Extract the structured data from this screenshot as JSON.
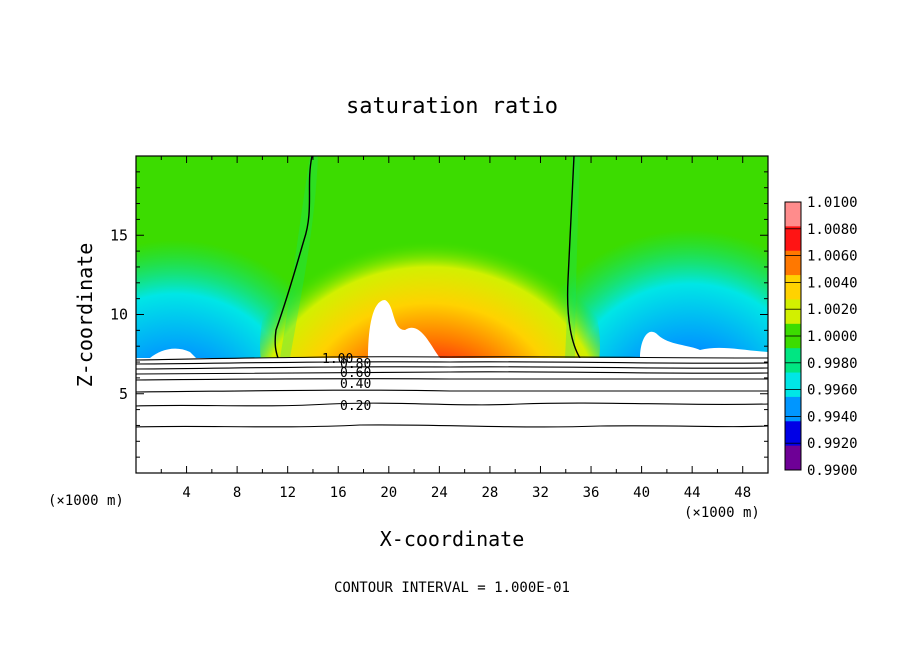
{
  "chart_data": {
    "type": "heatmap",
    "title": "saturation ratio",
    "xlabel": "X-coordinate",
    "ylabel": "Z-coordinate",
    "x_unit_label": "(×1000 m)",
    "z_unit_label": "(×1000 m)",
    "xlim": [
      0,
      50
    ],
    "ylim": [
      0,
      20
    ],
    "x_ticks": [
      4,
      8,
      12,
      16,
      20,
      24,
      28,
      32,
      36,
      40,
      44,
      48
    ],
    "y_ticks": [
      5,
      10,
      15
    ],
    "colorbar": {
      "levels": [
        "1.0100",
        "1.0080",
        "1.0060",
        "1.0040",
        "1.0020",
        "1.0000",
        "0.9980",
        "0.9960",
        "0.9940",
        "0.9920",
        "0.9900"
      ],
      "colors": [
        "#ff8c8c",
        "#ff1414",
        "#ff7800",
        "#ffd200",
        "#d2f000",
        "#3cdc00",
        "#00e682",
        "#00e6e6",
        "#0096ff",
        "#0000e6",
        "#6e0096"
      ]
    },
    "contour_interval": "CONTOUR INTERVAL = 1.000E-01",
    "contour_labels": [
      "1.00",
      "0.80",
      "0.60",
      "0.40",
      "0.20"
    ],
    "cloud_base_z": 7.2
  }
}
